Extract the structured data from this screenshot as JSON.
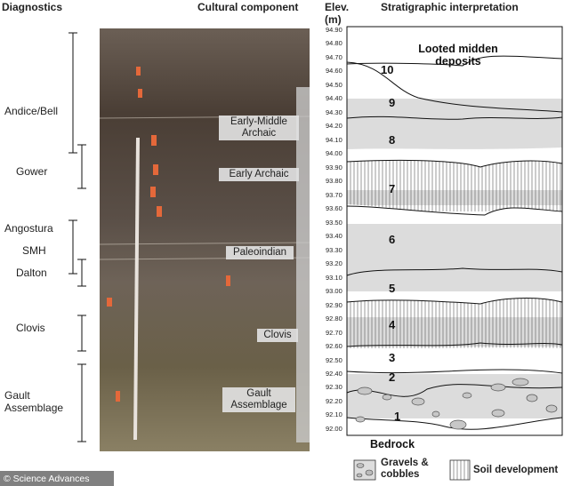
{
  "headers": {
    "diagnostics": "Diagnostics",
    "cultural": "Cultural component",
    "elevation": "Elev. (m)",
    "stratigraphy": "Stratigraphic interpretation"
  },
  "diagnostics": [
    "Andice/Bell",
    "Gower",
    "Angostura",
    "SMH",
    "Dalton",
    "Clovis",
    "Gault Assemblage"
  ],
  "cultural_components": [
    "Early-Middle Archaic",
    "Early Archaic",
    "Paleoindian",
    "Clovis",
    "Gault Assemblage"
  ],
  "elevations": [
    "94.90",
    "94.80",
    "94.70",
    "94.60",
    "94.50",
    "94.40",
    "94.30",
    "94.20",
    "94.10",
    "94.00",
    "93.90",
    "93.80",
    "93.70",
    "93.60",
    "93.50",
    "93.40",
    "93.30",
    "93.20",
    "93.10",
    "93.00",
    "92.90",
    "92.80",
    "92.70",
    "92.60",
    "92.50",
    "92.40",
    "92.30",
    "92.20",
    "92.10",
    "92.00"
  ],
  "layers": [
    "1",
    "2",
    "3",
    "4",
    "5",
    "6",
    "7",
    "8",
    "9",
    "10"
  ],
  "stratigraphy_labels": {
    "top": "Looted midden deposits",
    "bottom": "Bedrock"
  },
  "legend": [
    "Gravels & cobbles",
    "Soil development"
  ],
  "credit": "© Science Advances"
}
